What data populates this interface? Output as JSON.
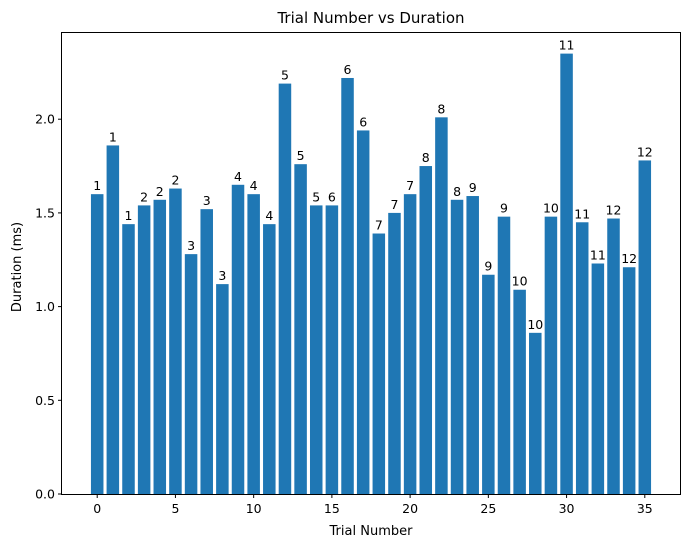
{
  "chart_data": {
    "type": "bar",
    "title": "Trial Number vs Duration",
    "xlabel": "Trial Number",
    "ylabel": "Duration (ms)",
    "xlim": [
      -2.25,
      37.25
    ],
    "ylim": [
      0,
      2.46
    ],
    "xticks": [
      0,
      5,
      10,
      15,
      20,
      25,
      30,
      35
    ],
    "xtick_labels": [
      "0",
      "5",
      "10",
      "15",
      "20",
      "25",
      "30",
      "35"
    ],
    "yticks": [
      0,
      0.5,
      1.0,
      1.5,
      2.0
    ],
    "ytick_labels": [
      "0.0",
      "0.5",
      "1.0",
      "1.5",
      "2.0"
    ],
    "grid": false,
    "bar_color": "#1f77b4",
    "x": [
      0,
      1,
      2,
      3,
      4,
      5,
      6,
      7,
      8,
      9,
      10,
      11,
      12,
      13,
      14,
      15,
      16,
      17,
      18,
      19,
      20,
      21,
      22,
      23,
      24,
      25,
      26,
      27,
      28,
      29,
      30,
      31,
      32,
      33,
      34,
      35
    ],
    "values": [
      1.6,
      1.86,
      1.44,
      1.54,
      1.57,
      1.63,
      1.28,
      1.52,
      1.12,
      1.65,
      1.6,
      1.44,
      2.19,
      1.76,
      1.54,
      1.54,
      2.22,
      1.94,
      1.39,
      1.5,
      1.6,
      1.75,
      2.01,
      1.57,
      1.59,
      1.17,
      1.48,
      1.09,
      0.86,
      1.48,
      2.35,
      1.45,
      1.23,
      1.47,
      1.21,
      1.78
    ],
    "bar_labels": [
      "1",
      "1",
      "1",
      "2",
      "2",
      "2",
      "3",
      "3",
      "3",
      "4",
      "4",
      "4",
      "5",
      "5",
      "5",
      "6",
      "6",
      "6",
      "7",
      "7",
      "7",
      "8",
      "8",
      "8",
      "9",
      "9",
      "9",
      "10",
      "10",
      "10",
      "11",
      "11",
      "11",
      "12",
      "12",
      "12"
    ]
  }
}
